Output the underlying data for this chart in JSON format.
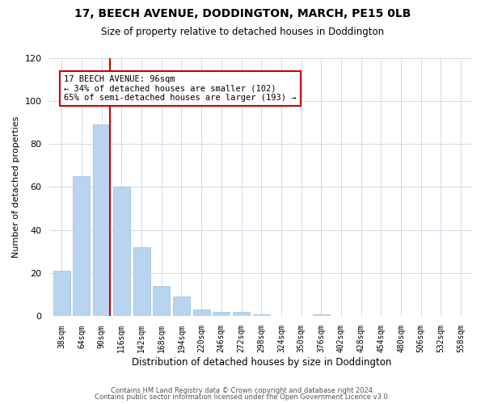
{
  "title": "17, BEECH AVENUE, DODDINGTON, MARCH, PE15 0LB",
  "subtitle": "Size of property relative to detached houses in Doddington",
  "xlabel": "Distribution of detached houses by size in Doddington",
  "ylabel": "Number of detached properties",
  "bar_color": "#b8d4ee",
  "bar_edge_color": "#9bbfdf",
  "background_color": "#ffffff",
  "grid_color": "#d0d8e8",
  "categories": [
    "38sqm",
    "64sqm",
    "90sqm",
    "116sqm",
    "142sqm",
    "168sqm",
    "194sqm",
    "220sqm",
    "246sqm",
    "272sqm",
    "298sqm",
    "324sqm",
    "350sqm",
    "376sqm",
    "402sqm",
    "428sqm",
    "454sqm",
    "480sqm",
    "506sqm",
    "532sqm",
    "558sqm"
  ],
  "values": [
    21,
    65,
    89,
    60,
    32,
    14,
    9,
    3,
    2,
    2,
    1,
    0,
    0,
    1,
    0,
    0,
    0,
    0,
    0,
    0,
    0
  ],
  "ylim": [
    0,
    120
  ],
  "yticks": [
    0,
    20,
    40,
    60,
    80,
    100,
    120
  ],
  "red_line_bin_index": 2,
  "annotation_text": "17 BEECH AVENUE: 96sqm\n← 34% of detached houses are smaller (102)\n65% of semi-detached houses are larger (193) →",
  "annotation_box_color": "#ffffff",
  "annotation_border_color": "#cc0000",
  "footer_line1": "Contains HM Land Registry data © Crown copyright and database right 2024.",
  "footer_line2": "Contains public sector information licensed under the Open Government Licence v3.0."
}
